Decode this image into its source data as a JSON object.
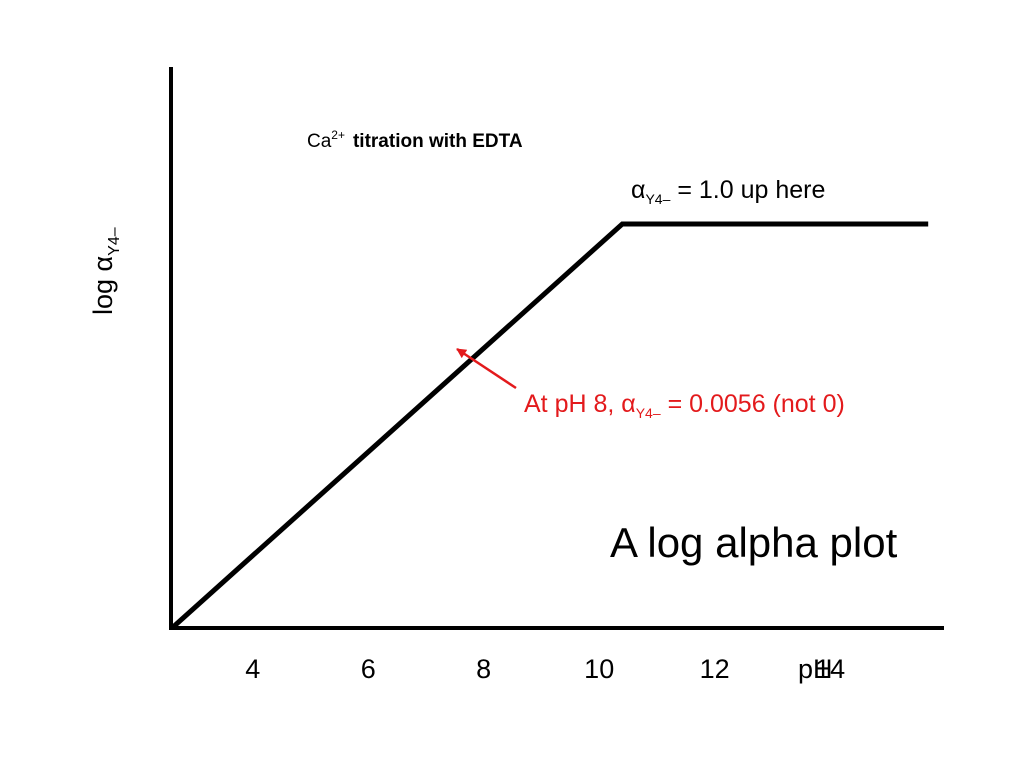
{
  "chart_data": {
    "type": "line",
    "title": "A log alpha plot",
    "subtitle": {
      "ion": "Ca",
      "charge": "2+",
      "rest": "titration with EDTA"
    },
    "xlabel": "pH",
    "ylabel": {
      "main": "log α",
      "sub": "Y4–"
    },
    "x_ticks": [
      "4",
      "6",
      "8",
      "10",
      "12",
      "14"
    ],
    "xlim": [
      2.6,
      18
    ],
    "series": [
      {
        "x": [
          2.6,
          10.4,
          15.7
        ],
        "y": [
          0,
          1,
          1
        ]
      }
    ],
    "ylim": [
      0,
      1.01
    ],
    "grid": false,
    "annotations": [
      {
        "id": "plateau_note",
        "color": "#000000",
        "parts": [
          "α",
          "Y4–",
          " = 1.0 up here"
        ]
      },
      {
        "id": "ph8_note",
        "color": "#e31a1c",
        "parts": [
          "At pH 8, α",
          "Y4–",
          " = 0.0056 (not 0)"
        ],
        "arrow_to": {
          "x": 8.2,
          "y": 0.685
        }
      }
    ]
  },
  "colors": {
    "axis": "#000000",
    "line": "#000000",
    "annotation": "#e31a1c",
    "background": "#ffffff"
  }
}
